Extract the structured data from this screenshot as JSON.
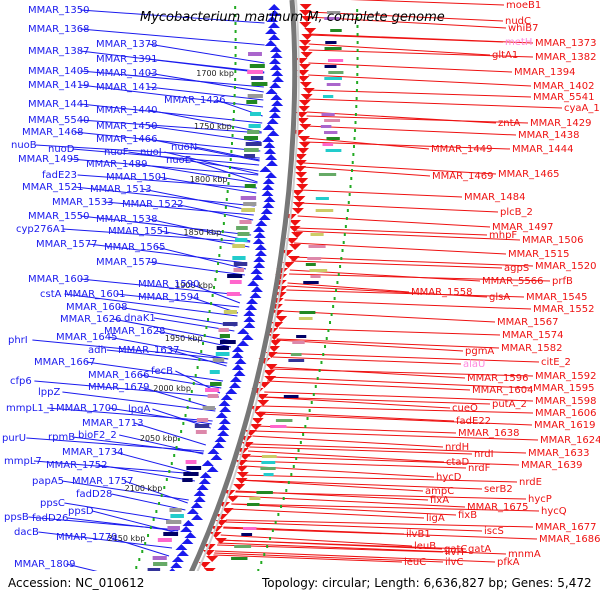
{
  "title": "Mycobacterium marinum M, complete genome",
  "footer": {
    "accession": "Accession: NC_010612",
    "summary": "Topology: circular; Length: 6,636,827 bp; Genes: 5,472"
  },
  "colors": {
    "left_genes": "#1a1aee",
    "right_genes": "#ee1111",
    "pink_label": "#ff88dd",
    "tick_mark": "#22aa22",
    "backbone": "#777777"
  },
  "ticks": [
    "1700 kbp",
    "1750 kbp",
    "1800 kbp",
    "1850 kbp",
    "1900 kbp",
    "1950 kbp",
    "2000 kbp",
    "2050 kbp",
    "2100 kbp",
    "2150 kbp"
  ],
  "left_labels": [
    "MMAR_1350",
    "MMAR_1368",
    "MMAR_1378",
    "MMAR_1387",
    "MMAR_1391",
    "MMAR_1405",
    "MMAR_1403",
    "MMAR_1419",
    "MMAR_1412",
    "MMAR_1426",
    "MMAR_1441",
    "MMAR_1440",
    "MMAR_5540",
    "MMAR_1450",
    "MMAR_1468",
    "MMAR_1466",
    "nuoB",
    "nuoD",
    "nuoF",
    "nuoJ",
    "nuoN",
    "MMAR_1495",
    "MMAR_1489",
    "nuoE",
    "fadE23",
    "MMAR_1501",
    "MMAR_1521",
    "MMAR_1513",
    "MMAR_1533",
    "MMAR_1522",
    "MMAR_1550",
    "MMAR_1538",
    "cyp276A1",
    "MMAR_1551",
    "MMAR_1577",
    "MMAR_1565",
    "MMAR_1579",
    "MMAR_1603",
    "MMAR_1590",
    "cstA",
    "MMAR_1601",
    "MMAR_1594",
    "MMAR_1608",
    "MMAR_1626",
    "dnaK1",
    "MMAR_1628",
    "phrI",
    "MMAR_1645",
    "adh",
    "MMAR_1637",
    "MMAR_1667",
    "fecB",
    "MMAR_1666",
    "cfp6",
    "lppZ",
    "MMAR_1679",
    "mmpL1_1",
    "MMAR_1700",
    "lpqA",
    "MMAR_1713",
    "purU",
    "rpmB",
    "bioF2_2",
    "MMAR_1734",
    "mmpL7",
    "MMAR_1752",
    "papA5",
    "MMAR_1757",
    "ppsB",
    "fadD28",
    "ppsC",
    "ppsD",
    "fadD26",
    "dacB",
    "MMAR_1779",
    "MMAR_1809"
  ],
  "right_labels": [
    "moeB1",
    "nudC",
    "whiB7",
    "metH",
    "MMAR_1373",
    "gltA1",
    "MMAR_1382",
    "MMAR_1394",
    "MMAR_1402",
    "MMAR_5541",
    "cyaA_1",
    "zntA",
    "MMAR_1429",
    "MMAR_1438",
    "MMAR_1449",
    "MMAR_1444",
    "MMAR_1469",
    "MMAR_1465",
    "MMAR_1484",
    "plcB_2",
    "MMAR_1497",
    "mhpF",
    "MMAR_1506",
    "MMAR_1515",
    "agpS",
    "MMAR_1520",
    "MMAR_5566",
    "prfB",
    "MMAR_1558",
    "glsA",
    "MMAR_1545",
    "MMAR_1552",
    "MMAR_1567",
    "MMAR_1574",
    "MMAR_1582",
    "pgmA",
    "alaU",
    "citE_2",
    "MMAR_1596",
    "MMAR_1592",
    "MMAR_1604",
    "MMAR_1595",
    "putA_2",
    "MMAR_1598",
    "cueO",
    "MMAR_1606",
    "fadE22",
    "MMAR_1619",
    "MMAR_1638",
    "MMAR_1624",
    "nrdH",
    "nrdI",
    "MMAR_1633",
    "ctaD",
    "nrdF",
    "MMAR_1639",
    "hycD",
    "nrdE",
    "serB2",
    "ampC",
    "hycP",
    "fixA",
    "MMAR_1675",
    "hycQ",
    "ligA",
    "fixB",
    "MMAR_1677",
    "iscS",
    "MMAR_1686",
    "ilvB1",
    "gatC",
    "leuB",
    "ilvH",
    "gatA",
    "mnmA",
    "leuC",
    "ilvC",
    "pfkA"
  ]
}
